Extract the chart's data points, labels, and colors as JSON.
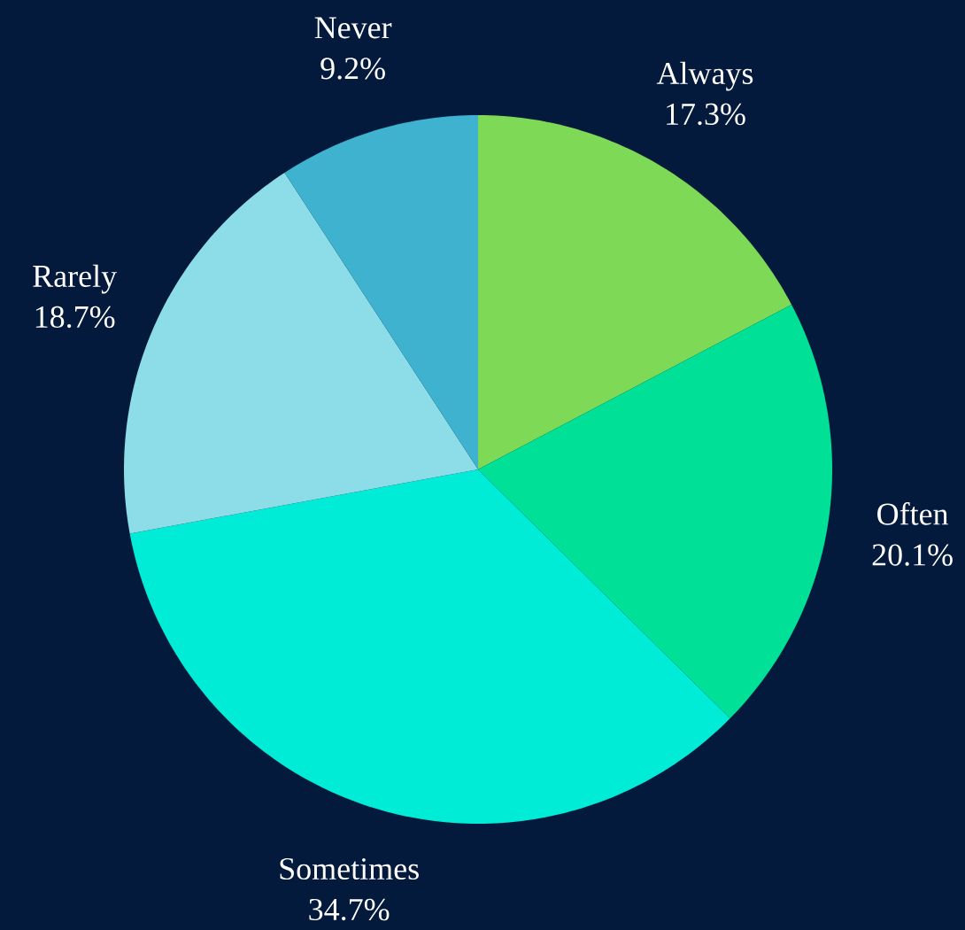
{
  "chart_data": {
    "type": "pie",
    "categories": [
      "Always",
      "Often",
      "Sometimes",
      "Rarely",
      "Never"
    ],
    "values": [
      17.3,
      20.1,
      34.7,
      18.7,
      9.2
    ],
    "value_labels": [
      "17.3%",
      "20.1%",
      "34.7%",
      "18.7%",
      "9.2%"
    ],
    "colors": [
      "#7ed957",
      "#00e096",
      "#00ecd6",
      "#8ddde8",
      "#3fb2d0"
    ]
  }
}
